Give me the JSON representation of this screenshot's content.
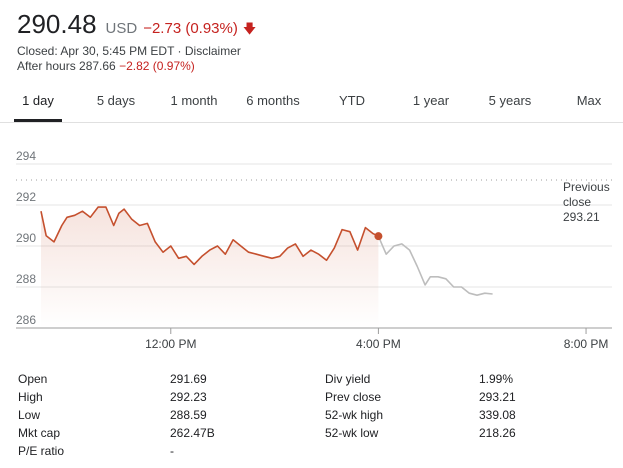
{
  "quote": {
    "price": "290.48",
    "currency": "USD",
    "change": "−2.73 (0.93%)",
    "arrow": "down-arrow-icon",
    "closed_text": "Closed: Apr 30, 5:45 PM EDT · ",
    "disclaimer": "Disclaimer",
    "after_hours_label": "After hours 287.66 ",
    "after_hours_change": "−2.82 (0.97%)",
    "negative_color": "#c5221f"
  },
  "tabs": [
    {
      "label": "1 day",
      "active": true
    },
    {
      "label": "5 days"
    },
    {
      "label": "1 month"
    },
    {
      "label": "6 months"
    },
    {
      "label": "YTD"
    },
    {
      "label": "1 year"
    },
    {
      "label": "5 years"
    },
    {
      "label": "Max"
    }
  ],
  "chart_data": {
    "type": "line",
    "x_tick_labels": [
      "12:00 PM",
      "4:00 PM",
      "8:00 PM"
    ],
    "y_tick_labels": [
      "294",
      "292",
      "290",
      "288",
      "286"
    ],
    "ylim": [
      286,
      294.5
    ],
    "x_range_hours": [
      9.5,
      20.5
    ],
    "previous_close": {
      "label_line1": "Previous",
      "label_line2": "close",
      "value": 293.21
    },
    "series": [
      {
        "color": "#c5502e",
        "x": [
          9.5,
          9.6,
          9.75,
          9.9,
          10.0,
          10.15,
          10.3,
          10.45,
          10.6,
          10.75,
          10.9,
          11.0,
          11.1,
          11.25,
          11.4,
          11.55,
          11.7,
          11.85,
          12.0,
          12.15,
          12.3,
          12.45,
          12.6,
          12.75,
          12.9,
          13.05,
          13.2,
          13.35,
          13.5,
          13.65,
          13.8,
          13.95,
          14.1,
          14.25,
          14.4,
          14.55,
          14.7,
          14.85,
          15.0,
          15.15,
          15.3,
          15.45,
          15.6,
          15.75,
          15.9,
          16.0
        ],
        "values": [
          291.7,
          290.5,
          290.2,
          291.0,
          291.4,
          291.5,
          291.7,
          291.4,
          291.9,
          291.9,
          291.0,
          291.6,
          291.8,
          291.3,
          291.0,
          291.1,
          290.2,
          289.7,
          290.0,
          289.4,
          289.5,
          289.1,
          289.5,
          289.8,
          290.0,
          289.6,
          290.3,
          290.0,
          289.7,
          289.6,
          289.5,
          289.4,
          289.5,
          289.9,
          290.1,
          289.5,
          289.8,
          289.6,
          289.3,
          289.9,
          290.8,
          290.7,
          289.8,
          290.9,
          290.6,
          290.48
        ]
      },
      {
        "color": "#bdbdbd",
        "x": [
          16.0,
          16.15,
          16.3,
          16.45,
          16.6,
          16.75,
          16.9,
          17.0,
          17.15,
          17.3,
          17.45,
          17.6,
          17.75,
          17.9,
          18.05,
          18.2
        ],
        "values": [
          290.48,
          289.6,
          290.0,
          290.1,
          289.8,
          289.0,
          288.1,
          288.5,
          288.5,
          288.4,
          288.0,
          288.0,
          287.7,
          287.6,
          287.7,
          287.66
        ]
      }
    ]
  },
  "stats": {
    "left": [
      {
        "label": "Open",
        "value": "291.69"
      },
      {
        "label": "High",
        "value": "292.23"
      },
      {
        "label": "Low",
        "value": "288.59"
      },
      {
        "label": "Mkt cap",
        "value": "262.47B"
      },
      {
        "label": "P/E ratio",
        "value": "-"
      }
    ],
    "right": [
      {
        "label": "Div yield",
        "value": "1.99%"
      },
      {
        "label": "Prev close",
        "value": "293.21"
      },
      {
        "label": "52-wk high",
        "value": "339.08"
      },
      {
        "label": "52-wk low",
        "value": "218.26"
      }
    ]
  }
}
